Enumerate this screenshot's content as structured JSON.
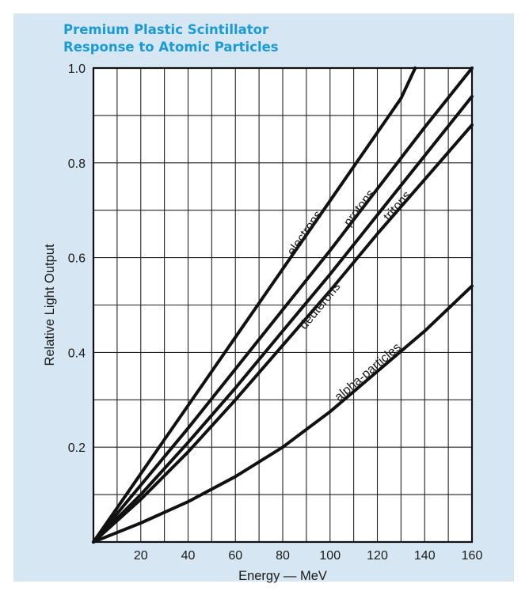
{
  "chart_data": {
    "type": "line",
    "title": "Premium Plastic Scintillator",
    "subtitle": "Response to Atomic Particles",
    "xlabel": "Energy — MeV",
    "ylabel": "Relative Light Output",
    "xlim": [
      0,
      160
    ],
    "ylim": [
      0,
      1.0
    ],
    "x_ticks": [
      20,
      40,
      60,
      80,
      100,
      120,
      140,
      160
    ],
    "y_ticks": [
      "0.2",
      "0.4",
      "0.6",
      "0.8",
      "1.0"
    ],
    "grid": true,
    "series": [
      {
        "name": "electrons",
        "x": [
          0,
          10,
          20,
          30,
          40,
          50,
          60,
          70,
          80,
          90,
          100,
          110,
          120,
          130,
          136
        ],
        "y": [
          0,
          0.072,
          0.144,
          0.216,
          0.288,
          0.36,
          0.432,
          0.504,
          0.576,
          0.648,
          0.72,
          0.792,
          0.864,
          0.936,
          1.0
        ]
      },
      {
        "name": "protons",
        "x": [
          0,
          20,
          40,
          60,
          80,
          100,
          120,
          140,
          160
        ],
        "y": [
          0,
          0.12,
          0.24,
          0.365,
          0.49,
          0.615,
          0.745,
          0.875,
          1.0
        ]
      },
      {
        "name": "deuterons",
        "x": [
          0,
          20,
          40,
          60,
          80,
          100,
          120,
          140,
          160
        ],
        "y": [
          0,
          0.1,
          0.21,
          0.325,
          0.445,
          0.565,
          0.69,
          0.815,
          0.94
        ]
      },
      {
        "name": "tritons",
        "x": [
          0,
          20,
          40,
          60,
          80,
          100,
          120,
          140,
          160
        ],
        "y": [
          0,
          0.09,
          0.19,
          0.3,
          0.415,
          0.53,
          0.65,
          0.765,
          0.88
        ]
      },
      {
        "name": "alpha-particles",
        "x": [
          0,
          20,
          40,
          60,
          80,
          100,
          120,
          140,
          160
        ],
        "y": [
          0,
          0.04,
          0.085,
          0.138,
          0.2,
          0.275,
          0.36,
          0.445,
          0.54
        ]
      }
    ]
  }
}
